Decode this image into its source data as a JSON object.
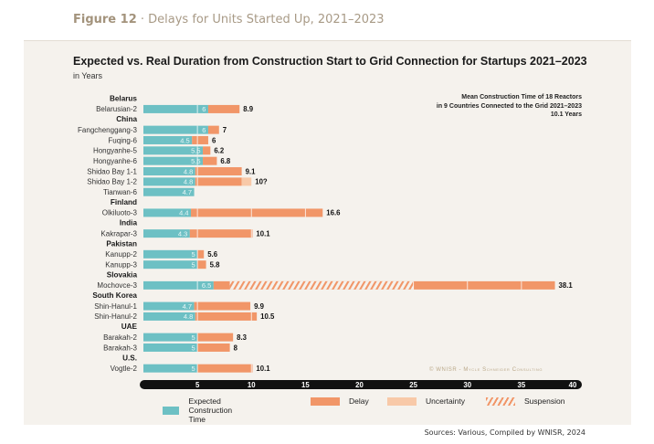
{
  "figure": {
    "label": "Figure 12",
    "separator": " · ",
    "caption": "Delays for Units Started Up, 2021–2023"
  },
  "credit": "© WNISR - Mycle Schneider Consulting",
  "source": "Sources: Various, Compiled by WNISR, 2024",
  "mean_note": {
    "line1": "Mean Construction Time of 18 Reactors",
    "line2": "in 9 Countries Connected to the Grid 2021–2023",
    "line3": "10.1 Years"
  },
  "colors": {
    "expected": "#6dc0c4",
    "delay": "#f19668",
    "uncertainty": "#f8c9a8",
    "suspension": "#f19668",
    "axis": "#111111",
    "panel": "#f5f2ed"
  },
  "chart_data": {
    "type": "bar",
    "orientation": "horizontal-stacked",
    "title": "Expected vs. Real Duration from Construction Start to Grid Connection for Startups 2021–2023",
    "subtitle": "in Years",
    "xlabel": "",
    "ylabel": "",
    "xlim": [
      0,
      40
    ],
    "xticks": [
      5,
      10,
      15,
      20,
      25,
      30,
      35,
      40
    ],
    "grid": false,
    "legend_position": "bottom",
    "legend": [
      {
        "key": "expected",
        "label": "Expected Construction Time"
      },
      {
        "key": "delay",
        "label": "Delay"
      },
      {
        "key": "uncertainty",
        "label": "Uncertainty"
      },
      {
        "key": "suspension",
        "label": "Suspension"
      }
    ],
    "groups": [
      {
        "country": "Belarus",
        "reactors": [
          {
            "name": "Belarusian-2",
            "expected": 6,
            "total": 8.9,
            "total_label": "8.9"
          }
        ]
      },
      {
        "country": "China",
        "reactors": [
          {
            "name": "Fangchenggang-3",
            "expected": 6,
            "total": 7,
            "total_label": "7"
          },
          {
            "name": "Fuqing-6",
            "expected": 4.5,
            "total": 6,
            "total_label": "6"
          },
          {
            "name": "Hongyanhe-5",
            "expected": 5.5,
            "total": 6.2,
            "total_label": "6.2"
          },
          {
            "name": "Hongyanhe-6",
            "expected": 5.5,
            "total": 6.8,
            "total_label": "6.8"
          },
          {
            "name": "Shidao Bay 1-1",
            "expected": 4.8,
            "total": 9.1,
            "total_label": "9.1"
          },
          {
            "name": "Shidao Bay 1-2",
            "expected": 4.8,
            "total": 9.1,
            "uncertainty_to": 10,
            "total_label": "10?"
          },
          {
            "name": "Tianwan-6",
            "expected": 4.7,
            "total": 4.7,
            "total_label": ""
          }
        ]
      },
      {
        "country": "Finland",
        "reactors": [
          {
            "name": "Olkiluoto-3",
            "expected": 4.4,
            "total": 16.6,
            "total_label": "16.6"
          }
        ]
      },
      {
        "country": "India",
        "reactors": [
          {
            "name": "Kakrapar-3",
            "expected": 4.3,
            "total": 10.1,
            "total_label": "10.1"
          }
        ]
      },
      {
        "country": "Pakistan",
        "reactors": [
          {
            "name": "Kanupp-2",
            "expected": 5,
            "total": 5.6,
            "total_label": "5.6"
          },
          {
            "name": "Kanupp-3",
            "expected": 5,
            "total": 5.8,
            "total_label": "5.8"
          }
        ]
      },
      {
        "country": "Slovakia",
        "reactors": [
          {
            "name": "Mochovce-3",
            "expected": 6.5,
            "total": 38.1,
            "suspension": [
              8,
              25
            ],
            "total_label": "38.1"
          }
        ]
      },
      {
        "country": "South Korea",
        "reactors": [
          {
            "name": "Shin-Hanul-1",
            "expected": 4.7,
            "total": 9.9,
            "total_label": "9.9"
          },
          {
            "name": "Shin-Hanul-2",
            "expected": 4.8,
            "total": 10.5,
            "total_label": "10.5"
          }
        ]
      },
      {
        "country": "UAE",
        "reactors": [
          {
            "name": "Barakah-2",
            "expected": 5,
            "total": 8.3,
            "total_label": "8.3"
          },
          {
            "name": "Barakah-3",
            "expected": 5,
            "total": 8,
            "total_label": "8"
          }
        ]
      },
      {
        "country": "U.S.",
        "reactors": [
          {
            "name": "Vogtle-2",
            "expected": 5,
            "total": 10.1,
            "total_label": "10.1"
          }
        ]
      }
    ]
  }
}
